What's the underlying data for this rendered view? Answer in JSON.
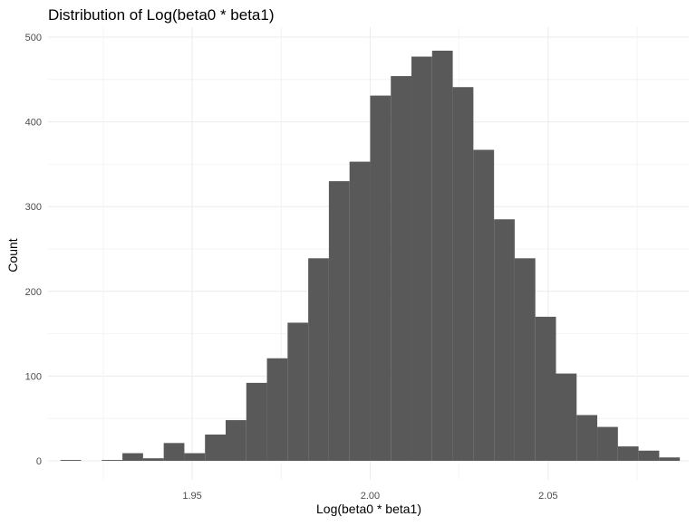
{
  "chart_data": {
    "type": "bar",
    "title": "Distribution of Log(beta0 * beta1)",
    "xlabel": "Log(beta0 * beta1)",
    "ylabel": "Count",
    "x_ticks": [
      "1.95",
      "2.00",
      "2.05"
    ],
    "y_ticks": [
      "0",
      "100",
      "200",
      "300",
      "400",
      "500"
    ],
    "xlim": [
      1.9095,
      2.0895
    ],
    "ylim": [
      0,
      505
    ],
    "grid": true,
    "bin_width": 0.0058,
    "bin_start": 1.913,
    "values": [
      1,
      0,
      1,
      9,
      3,
      21,
      9,
      31,
      48,
      92,
      121,
      163,
      239,
      330,
      353,
      431,
      454,
      477,
      484,
      441,
      367,
      285,
      239,
      170,
      103,
      54,
      40,
      17,
      12,
      4
    ],
    "bar_color": "#595959"
  }
}
